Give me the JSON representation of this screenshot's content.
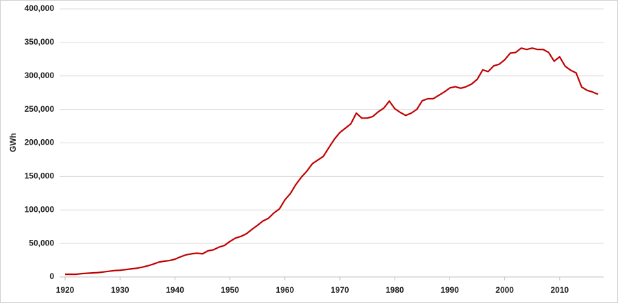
{
  "chart_data": {
    "type": "line",
    "y_label": "GWh",
    "x": [
      1920,
      1921,
      1922,
      1923,
      1924,
      1925,
      1926,
      1927,
      1928,
      1929,
      1930,
      1931,
      1932,
      1933,
      1934,
      1935,
      1936,
      1937,
      1938,
      1939,
      1940,
      1941,
      1942,
      1943,
      1944,
      1945,
      1946,
      1947,
      1948,
      1949,
      1950,
      1951,
      1952,
      1953,
      1954,
      1955,
      1956,
      1957,
      1958,
      1959,
      1960,
      1961,
      1962,
      1963,
      1964,
      1965,
      1966,
      1967,
      1968,
      1969,
      1970,
      1971,
      1972,
      1973,
      1974,
      1975,
      1976,
      1977,
      1978,
      1979,
      1980,
      1981,
      1982,
      1983,
      1984,
      1985,
      1986,
      1987,
      1988,
      1989,
      1990,
      1991,
      1992,
      1993,
      1994,
      1995,
      1996,
      1997,
      1998,
      1999,
      2000,
      2001,
      2002,
      2003,
      2004,
      2005,
      2006,
      2007,
      2008,
      2009,
      2010,
      2011,
      2012,
      2013,
      2014,
      2015,
      2016,
      2017
    ],
    "series": [
      {
        "color": "#c00000",
        "values": [
          4000,
          4000,
          4000,
          5000,
          5500,
          6000,
          6500,
          7500,
          8500,
          9500,
          10000,
          11000,
          12000,
          13000,
          14500,
          16500,
          19000,
          22000,
          23500,
          24500,
          26500,
          30000,
          33000,
          34500,
          35500,
          34500,
          39000,
          40500,
          44500,
          47000,
          53000,
          58000,
          60500,
          64500,
          71000,
          77000,
          83500,
          87500,
          95500,
          101500,
          115000,
          124500,
          138000,
          149000,
          158000,
          169000,
          174500,
          180000,
          193000,
          205500,
          215500,
          222000,
          228500,
          244500,
          237000,
          237000,
          239500,
          246500,
          252000,
          262500,
          251000,
          245500,
          241000,
          244500,
          250000,
          263000,
          266000,
          266000,
          271000,
          276000,
          282000,
          284000,
          281500,
          284000,
          288000,
          295000,
          309000,
          306500,
          315000,
          317500,
          324000,
          334000,
          335000,
          341500,
          339500,
          341500,
          339500,
          339500,
          335000,
          322000,
          328500,
          314500,
          308500,
          304500,
          283500,
          278500,
          276000,
          272500
        ]
      }
    ],
    "xlim": [
      1919,
      2018
    ],
    "xticks": [
      1920,
      1930,
      1940,
      1950,
      1960,
      1970,
      1980,
      1990,
      2000,
      2010
    ],
    "ylim": [
      0,
      400000
    ],
    "yticks": [
      0,
      {
        "value": 50000,
        "label": "50,000"
      },
      {
        "value": 100000,
        "label": "100,000"
      },
      {
        "value": 150000,
        "label": "150,000"
      },
      {
        "value": 200000,
        "label": "200,000"
      },
      {
        "value": 250000,
        "label": "250,000"
      },
      {
        "value": 300000,
        "label": "300,000"
      },
      {
        "value": 350000,
        "label": "350,000"
      },
      {
        "value": 400000,
        "label": "400,000"
      }
    ],
    "grid": true
  }
}
